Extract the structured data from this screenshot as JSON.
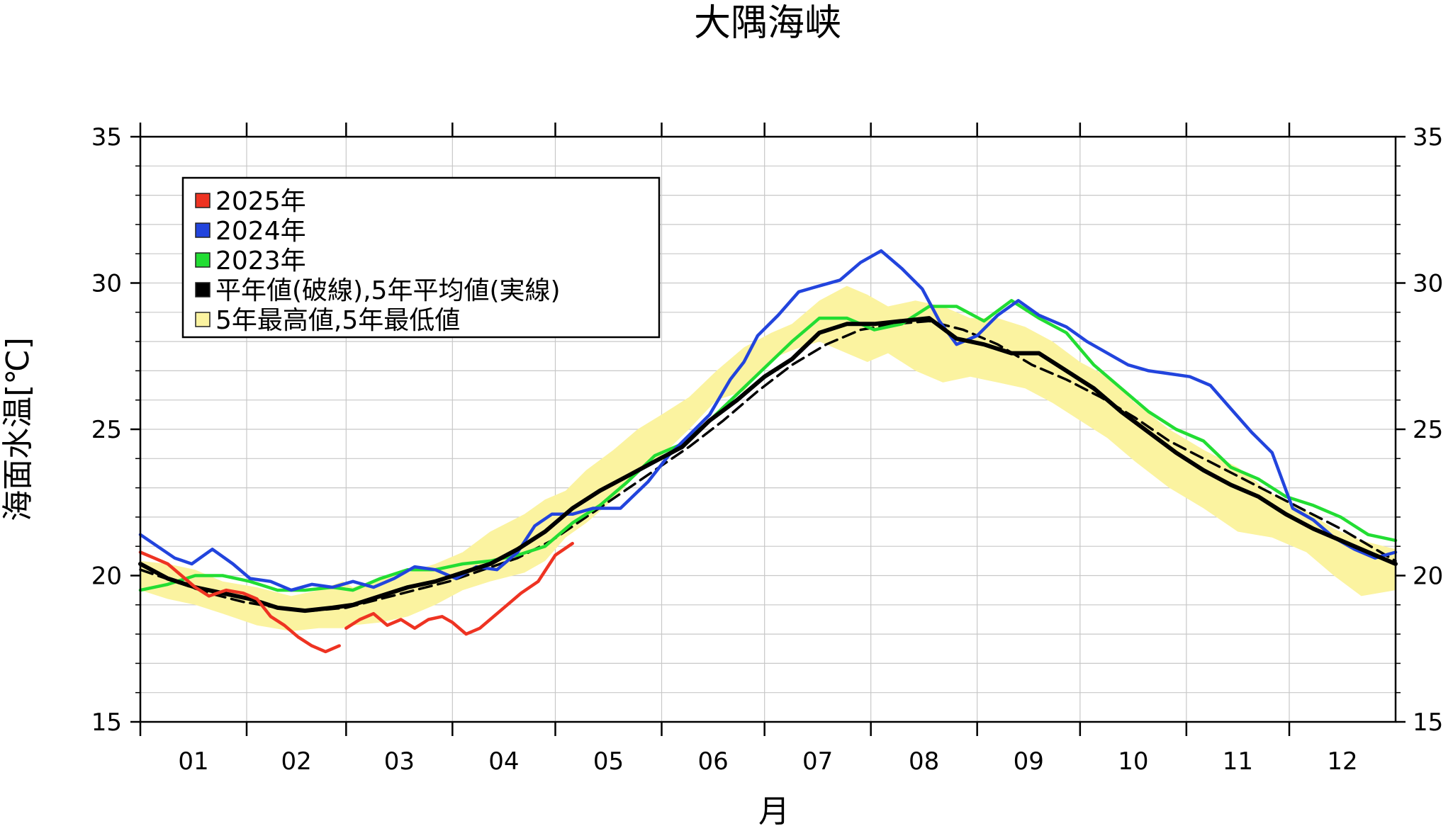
{
  "chart_data": {
    "type": "line",
    "title": "大隅海峡",
    "xlabel": "月",
    "ylabel": "海面水温[℃]",
    "ylim": [
      15,
      35
    ],
    "xlim": [
      0,
      366
    ],
    "y_ticks": [
      15,
      20,
      25,
      30,
      35
    ],
    "minor_y_step": 1,
    "x_ticks": [
      {
        "label": "01",
        "day": 0
      },
      {
        "label": "02",
        "day": 31
      },
      {
        "label": "03",
        "day": 60
      },
      {
        "label": "04",
        "day": 91
      },
      {
        "label": "05",
        "day": 121
      },
      {
        "label": "06",
        "day": 152
      },
      {
        "label": "07",
        "day": 182
      },
      {
        "label": "08",
        "day": 213
      },
      {
        "label": "09",
        "day": 244
      },
      {
        "label": "10",
        "day": 274
      },
      {
        "label": "11",
        "day": 305
      },
      {
        "label": "12",
        "day": 335
      }
    ],
    "grid": true,
    "legend_position": "top-left",
    "colors": {
      "y2025": "#ee3322",
      "y2024": "#2244dd",
      "y2023": "#22dd33",
      "normal": "#000000",
      "band": "#fbf3a0",
      "band_edge": "#222222"
    },
    "legend": [
      {
        "label": "2025年",
        "color": "#ee3322"
      },
      {
        "label": "2024年",
        "color": "#2244dd"
      },
      {
        "label": "2023年",
        "color": "#22dd33"
      },
      {
        "label": "平年値(破線),5年平均値(実線)",
        "color": "#000000"
      },
      {
        "label": "5年最高値,5年最低値",
        "color": "#fbf3a0"
      }
    ],
    "band": {
      "name": "5年最高値,5年最低値",
      "days": [
        0,
        8,
        16,
        24,
        34,
        44,
        52,
        59,
        62,
        70,
        78,
        86,
        94,
        102,
        112,
        118,
        124,
        130,
        138,
        145,
        152,
        160,
        168,
        176,
        184,
        190,
        198,
        206,
        212,
        218,
        226,
        234,
        242,
        250,
        258,
        266,
        274,
        282,
        290,
        300,
        310,
        320,
        330,
        340,
        348,
        356,
        366
      ],
      "max": [
        20.5,
        20.4,
        20.2,
        19.8,
        19.6,
        19.3,
        19.5,
        19.8,
        19.6,
        19.9,
        20.1,
        20.4,
        20.8,
        21.5,
        22.1,
        22.6,
        22.9,
        23.6,
        24.3,
        25.0,
        25.5,
        26.1,
        27.0,
        27.8,
        28.3,
        28.6,
        29.4,
        29.9,
        29.6,
        29.2,
        29.4,
        29.2,
        28.8,
        28.8,
        28.5,
        28.0,
        27.3,
        26.8,
        25.9,
        25.0,
        24.3,
        23.7,
        22.8,
        22.2,
        21.6,
        21.2,
        20.9
      ],
      "min": [
        19.5,
        19.2,
        19.0,
        18.7,
        18.3,
        18.1,
        18.2,
        18.2,
        18.3,
        18.4,
        18.6,
        19.0,
        19.5,
        19.8,
        20.1,
        20.5,
        21.3,
        21.8,
        22.6,
        23.5,
        24.1,
        25.0,
        26.0,
        26.3,
        27.4,
        27.7,
        28.0,
        27.6,
        27.3,
        27.6,
        27.0,
        26.6,
        26.8,
        26.6,
        26.4,
        25.9,
        25.3,
        24.7,
        23.9,
        23.0,
        22.3,
        21.5,
        21.3,
        20.8,
        20.0,
        19.3,
        19.5
      ]
    },
    "series": [
      {
        "name": "2025年",
        "line": "solid",
        "segments": [
          {
            "days": [
              0,
              4,
              8,
              12,
              16,
              20,
              25,
              30,
              34,
              38,
              42,
              46,
              50,
              54,
              58
            ],
            "values": [
              20.8,
              20.6,
              20.4,
              20.0,
              19.6,
              19.3,
              19.5,
              19.4,
              19.2,
              18.6,
              18.3,
              17.9,
              17.6,
              17.4,
              17.6
            ]
          },
          {
            "days": [
              60,
              64,
              68,
              72,
              76,
              80,
              84,
              88,
              91,
              95,
              99,
              103,
              107,
              111,
              116,
              121,
              126
            ],
            "values": [
              18.2,
              18.5,
              18.7,
              18.3,
              18.5,
              18.2,
              18.5,
              18.6,
              18.4,
              18.0,
              18.2,
              18.6,
              19.0,
              19.4,
              19.8,
              20.7,
              21.1
            ]
          }
        ]
      },
      {
        "name": "2024年",
        "line": "solid",
        "days": [
          0,
          5,
          10,
          15,
          21,
          27,
          32,
          38,
          44,
          50,
          56,
          62,
          68,
          74,
          80,
          86,
          92,
          98,
          104,
          110,
          115,
          120,
          126,
          132,
          140,
          148,
          154,
          160,
          166,
          172,
          176,
          180,
          186,
          192,
          198,
          204,
          210,
          216,
          222,
          228,
          233,
          238,
          244,
          250,
          256,
          262,
          270,
          276,
          282,
          288,
          294,
          300,
          306,
          312,
          318,
          324,
          330,
          336,
          342,
          348,
          354,
          360,
          366
        ],
        "values": [
          21.4,
          21.0,
          20.6,
          20.4,
          20.9,
          20.4,
          19.9,
          19.8,
          19.5,
          19.7,
          19.6,
          19.8,
          19.6,
          19.9,
          20.3,
          20.2,
          19.9,
          20.3,
          20.2,
          20.8,
          21.7,
          22.1,
          22.1,
          22.3,
          22.3,
          23.2,
          24.1,
          24.8,
          25.5,
          26.7,
          27.3,
          28.2,
          28.9,
          29.7,
          29.9,
          30.1,
          30.7,
          31.1,
          30.5,
          29.8,
          28.7,
          27.9,
          28.2,
          28.9,
          29.4,
          28.9,
          28.5,
          28.0,
          27.6,
          27.2,
          27.0,
          26.9,
          26.8,
          26.5,
          25.7,
          24.9,
          24.2,
          22.3,
          21.9,
          21.3,
          20.9,
          20.6,
          20.8
        ]
      },
      {
        "name": "2023年",
        "line": "solid",
        "days": [
          0,
          8,
          16,
          24,
          32,
          40,
          48,
          56,
          62,
          70,
          78,
          86,
          94,
          102,
          110,
          118,
          126,
          134,
          142,
          150,
          158,
          166,
          174,
          182,
          190,
          198,
          206,
          214,
          222,
          230,
          238,
          246,
          254,
          262,
          270,
          278,
          286,
          294,
          302,
          310,
          318,
          326,
          334,
          342,
          350,
          358,
          366
        ],
        "values": [
          19.5,
          19.7,
          20.0,
          20.0,
          19.8,
          19.5,
          19.5,
          19.6,
          19.5,
          19.9,
          20.2,
          20.2,
          20.4,
          20.5,
          20.7,
          21.0,
          21.8,
          22.4,
          23.2,
          24.1,
          24.5,
          25.3,
          26.2,
          27.1,
          28.0,
          28.8,
          28.8,
          28.4,
          28.6,
          29.2,
          29.2,
          28.7,
          29.4,
          28.8,
          28.3,
          27.2,
          26.4,
          25.6,
          25.0,
          24.6,
          23.7,
          23.3,
          22.7,
          22.4,
          22.0,
          21.4,
          21.2
        ]
      },
      {
        "name": "5年平均値",
        "line": "solid",
        "days": [
          0,
          8,
          16,
          24,
          32,
          40,
          48,
          56,
          62,
          70,
          78,
          86,
          94,
          102,
          110,
          118,
          126,
          134,
          142,
          150,
          158,
          166,
          174,
          182,
          190,
          198,
          206,
          214,
          222,
          230,
          238,
          246,
          254,
          262,
          270,
          278,
          286,
          294,
          302,
          310,
          318,
          326,
          334,
          342,
          350,
          358,
          366
        ],
        "values": [
          20.4,
          19.9,
          19.6,
          19.4,
          19.2,
          18.9,
          18.8,
          18.9,
          19.0,
          19.3,
          19.6,
          19.8,
          20.1,
          20.4,
          20.9,
          21.5,
          22.3,
          22.9,
          23.4,
          23.9,
          24.4,
          25.3,
          26.0,
          26.8,
          27.4,
          28.3,
          28.6,
          28.6,
          28.7,
          28.8,
          28.1,
          27.9,
          27.6,
          27.6,
          27.0,
          26.4,
          25.6,
          24.9,
          24.2,
          23.6,
          23.1,
          22.7,
          22.1,
          21.6,
          21.2,
          20.8,
          20.4
        ]
      },
      {
        "name": "平年値",
        "line": "dashed",
        "days": [
          0,
          10,
          20,
          30,
          40,
          50,
          60,
          70,
          80,
          90,
          100,
          110,
          120,
          130,
          140,
          150,
          160,
          170,
          180,
          190,
          200,
          210,
          220,
          230,
          240,
          250,
          260,
          270,
          280,
          290,
          300,
          310,
          320,
          330,
          340,
          350,
          366
        ],
        "values": [
          20.2,
          19.8,
          19.4,
          19.1,
          18.9,
          18.8,
          18.9,
          19.2,
          19.5,
          19.8,
          20.2,
          20.6,
          21.2,
          22.0,
          22.8,
          23.6,
          24.4,
          25.3,
          26.3,
          27.2,
          27.9,
          28.4,
          28.6,
          28.7,
          28.4,
          27.9,
          27.2,
          26.7,
          26.1,
          25.4,
          24.6,
          24.0,
          23.4,
          22.8,
          22.2,
          21.6,
          20.5
        ]
      }
    ]
  }
}
